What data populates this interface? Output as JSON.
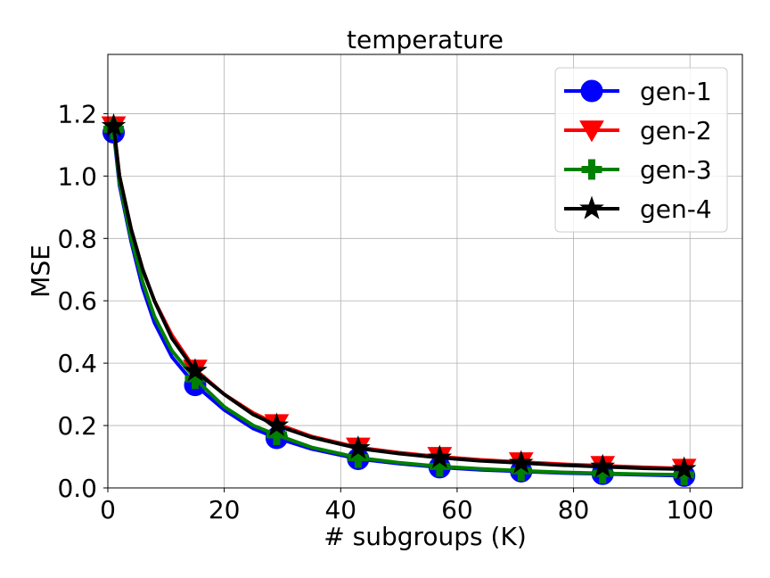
{
  "chart_data": {
    "type": "line",
    "title": "temperature",
    "xlabel": "# subgroups (K)",
    "ylabel": "MSE",
    "xlim": [
      0,
      109
    ],
    "ylim": [
      0,
      1.39
    ],
    "xticks": [
      0,
      20,
      40,
      60,
      80,
      100
    ],
    "yticks": [
      0.0,
      0.2,
      0.4,
      0.6,
      0.8,
      1.0,
      1.2
    ],
    "xtick_labels": [
      "0",
      "20",
      "40",
      "60",
      "80",
      "100"
    ],
    "ytick_labels": [
      "0.0",
      "0.2",
      "0.4",
      "0.6",
      "0.8",
      "1.0",
      "1.2"
    ],
    "grid": true,
    "legend_position": "top-right",
    "series": [
      {
        "name": "gen-1",
        "color": "#0000ff",
        "marker": "circle",
        "x": [
          1,
          2,
          4,
          6,
          8,
          11,
          15,
          20,
          25,
          29,
          35,
          43,
          50,
          57,
          64,
          71,
          78,
          85,
          92,
          99
        ],
        "y": [
          1.14,
          0.97,
          0.79,
          0.64,
          0.53,
          0.42,
          0.33,
          0.25,
          0.19,
          0.16,
          0.125,
          0.093,
          0.078,
          0.066,
          0.058,
          0.053,
          0.048,
          0.045,
          0.042,
          0.039
        ],
        "marker_x": [
          1,
          15,
          29,
          43,
          57,
          71,
          85,
          99
        ],
        "marker_y": [
          1.14,
          0.33,
          0.16,
          0.093,
          0.066,
          0.053,
          0.045,
          0.039
        ]
      },
      {
        "name": "gen-2",
        "color": "#ff0000",
        "marker": "triangle-down",
        "x": [
          1,
          2,
          4,
          6,
          8,
          11,
          15,
          20,
          25,
          29,
          35,
          43,
          50,
          57,
          64,
          71,
          78,
          85,
          92,
          99
        ],
        "y": [
          1.16,
          1.0,
          0.83,
          0.7,
          0.6,
          0.49,
          0.38,
          0.3,
          0.24,
          0.205,
          0.165,
          0.13,
          0.113,
          0.1,
          0.09,
          0.083,
          0.076,
          0.071,
          0.066,
          0.062
        ],
        "marker_x": [
          1,
          15,
          29,
          43,
          57,
          71,
          85,
          99
        ],
        "marker_y": [
          1.16,
          0.38,
          0.205,
          0.13,
          0.1,
          0.083,
          0.071,
          0.062
        ]
      },
      {
        "name": "gen-3",
        "color": "#008000",
        "marker": "plus",
        "x": [
          1,
          2,
          4,
          6,
          8,
          11,
          15,
          20,
          25,
          29,
          35,
          43,
          50,
          57,
          64,
          71,
          78,
          85,
          92,
          99
        ],
        "y": [
          1.15,
          0.98,
          0.8,
          0.66,
          0.55,
          0.44,
          0.35,
          0.26,
          0.2,
          0.17,
          0.13,
          0.097,
          0.081,
          0.069,
          0.061,
          0.055,
          0.05,
          0.047,
          0.044,
          0.042
        ],
        "marker_x": [
          1,
          15,
          29,
          43,
          57,
          71,
          85,
          99
        ],
        "marker_y": [
          1.15,
          0.35,
          0.17,
          0.097,
          0.069,
          0.055,
          0.047,
          0.042
        ]
      },
      {
        "name": "gen-4",
        "color": "#000000",
        "marker": "star",
        "x": [
          1,
          2,
          4,
          6,
          8,
          11,
          15,
          20,
          25,
          29,
          35,
          43,
          50,
          57,
          64,
          71,
          78,
          85,
          92,
          99
        ],
        "y": [
          1.16,
          1.0,
          0.83,
          0.7,
          0.6,
          0.48,
          0.375,
          0.3,
          0.235,
          0.2,
          0.162,
          0.127,
          0.11,
          0.097,
          0.087,
          0.08,
          0.073,
          0.068,
          0.063,
          0.06
        ],
        "marker_x": [
          1,
          15,
          29,
          43,
          57,
          71,
          85,
          99
        ],
        "marker_y": [
          1.16,
          0.375,
          0.2,
          0.127,
          0.097,
          0.08,
          0.068,
          0.06
        ]
      }
    ]
  }
}
